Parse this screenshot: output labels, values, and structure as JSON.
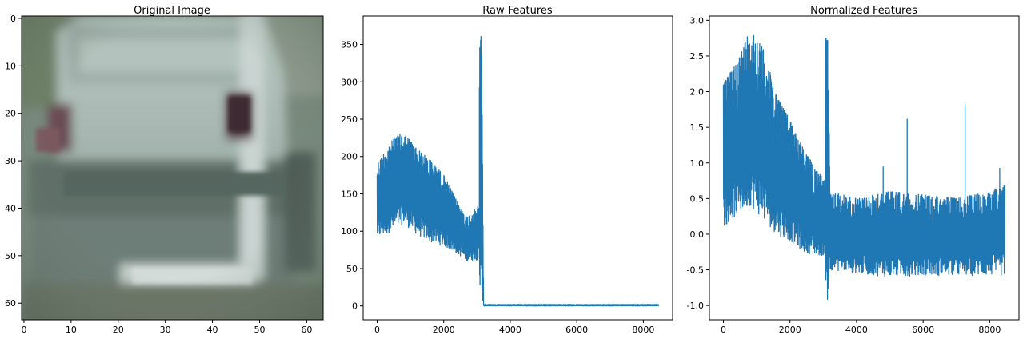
{
  "chart_data": [
    {
      "type": "image",
      "title": "Original Image",
      "xticks": [
        0,
        10,
        20,
        30,
        40,
        50,
        60
      ],
      "yticks": [
        0,
        10,
        20,
        30,
        40,
        50,
        60
      ],
      "xlim": [
        -0.5,
        63.5
      ],
      "ylim": [
        63.5,
        -0.5
      ],
      "image_content": "blurred rear view of a silver car"
    },
    {
      "type": "line",
      "title": "Raw Features",
      "xlim": [
        -420,
        8880
      ],
      "ylim": [
        -18.5,
        388
      ],
      "xticks": [
        0,
        2000,
        4000,
        6000,
        8000
      ],
      "yticks": [
        0,
        50,
        100,
        150,
        200,
        250,
        300,
        350
      ],
      "series": [
        {
          "color": "#1f77b4",
          "segments": [
            {
              "x": [
                0,
                3072
              ],
              "band": [
                [
                  0,
                  90,
                  190
                ],
                [
                  500,
                  100,
                  225
                ],
                [
                  800,
                  110,
                  232
                ],
                [
                  1200,
                  95,
                  210
                ],
                [
                  1600,
                  85,
                  195
                ],
                [
                  2000,
                  80,
                  175
                ],
                [
                  2400,
                  70,
                  140
                ],
                [
                  2700,
                  60,
                  118
                ],
                [
                  3072,
                  62,
                  135
                ]
              ]
            },
            {
              "x": [
                3072,
                3200
              ],
              "band": [
                [
                  3072,
                  0,
                  371
                ],
                [
                  3100,
                  0,
                  370
                ],
                [
                  3140,
                  0,
                  360
                ],
                [
                  3200,
                  0,
                  2
                ]
              ]
            },
            {
              "x": [
                3200,
                8460
              ],
              "band": [
                [
                  3200,
                  0,
                  2
                ],
                [
                  8460,
                  0,
                  2
                ]
              ]
            }
          ]
        }
      ]
    },
    {
      "type": "line",
      "title": "Normalized Features",
      "xlim": [
        -420,
        8880
      ],
      "ylim": [
        -1.2,
        3.06
      ],
      "xticks": [
        0,
        2000,
        4000,
        6000,
        8000
      ],
      "yticks": [
        -1.0,
        -0.5,
        0.0,
        0.5,
        1.0,
        1.5,
        2.0,
        2.5,
        3.0
      ],
      "series": [
        {
          "color": "#1f77b4",
          "segments": [
            {
              "x": [
                0,
                3072
              ],
              "band": [
                [
                  0,
                  0.1,
                  2.1
                ],
                [
                  500,
                  0.3,
                  2.5
                ],
                [
                  800,
                  0.4,
                  2.88
                ],
                [
                  1200,
                  0.2,
                  2.6
                ],
                [
                  1600,
                  0.0,
                  1.95
                ],
                [
                  2000,
                  -0.1,
                  1.6
                ],
                [
                  2400,
                  -0.25,
                  1.2
                ],
                [
                  2800,
                  -0.3,
                  0.9
                ],
                [
                  3072,
                  -0.3,
                  0.75
                ]
              ]
            },
            {
              "x": [
                3072,
                3200
              ],
              "band": [
                [
                  3072,
                  -0.98,
                  2.75
                ],
                [
                  3150,
                  -0.98,
                  2.75
                ],
                [
                  3200,
                  -0.4,
                  0.8
                ]
              ]
            },
            {
              "x": [
                3200,
                8460
              ],
              "band": [
                [
                  3200,
                  -0.5,
                  0.6
                ],
                [
                  4000,
                  -0.55,
                  0.5
                ],
                [
                  5000,
                  -0.6,
                  0.6
                ],
                [
                  6000,
                  -0.58,
                  0.55
                ],
                [
                  7000,
                  -0.58,
                  0.5
                ],
                [
                  8000,
                  -0.58,
                  0.6
                ],
                [
                  8460,
                  -0.58,
                  0.7
                ]
              ]
            }
          ],
          "peaks": [
            [
              4800,
              0.95
            ],
            [
              5520,
              1.62
            ],
            [
              7260,
              1.82
            ],
            [
              8300,
              0.93
            ]
          ]
        }
      ]
    }
  ]
}
